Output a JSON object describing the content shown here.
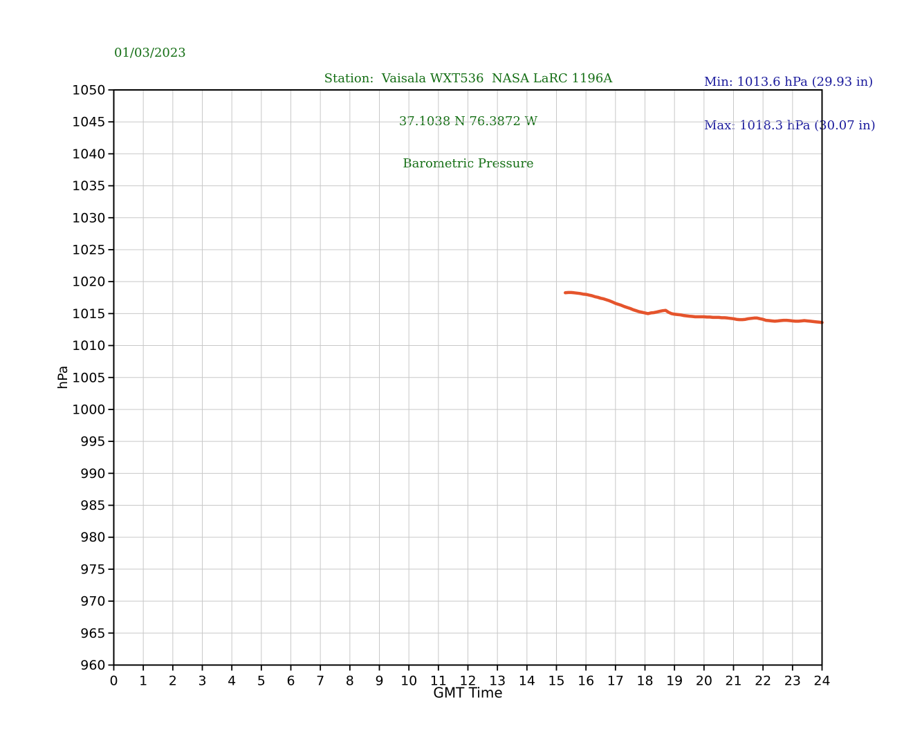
{
  "header": {
    "date": "01/03/2023",
    "station_line": "Station:  Vaisala WXT536  NASA LaRC 1196A",
    "location_line": "37.1038 N 76.3872 W",
    "plot_title": "Barometric Pressure",
    "min_line": "Min: 1013.6 hPa (29.93 in)",
    "max_line": "Max: 1018.3 hPa (30.07 in)"
  },
  "colors": {
    "title_green": "#146e14",
    "minmax_blue": "#1a1a9c",
    "line_orange": "#e5542c",
    "grid_gray": "#c8c8c8",
    "axis_black": "#000000"
  },
  "chart_data": {
    "type": "line",
    "title": "Barometric Pressure",
    "xlabel": "GMT Time",
    "ylabel": "hPa",
    "xlim": [
      0,
      24
    ],
    "ylim": [
      960,
      1050
    ],
    "grid": true,
    "legend": "none",
    "x_ticks": [
      0,
      1,
      2,
      3,
      4,
      5,
      6,
      7,
      8,
      9,
      10,
      11,
      12,
      13,
      14,
      15,
      16,
      17,
      18,
      19,
      20,
      21,
      22,
      23,
      24
    ],
    "y_ticks": [
      960,
      965,
      970,
      975,
      980,
      985,
      990,
      995,
      1000,
      1005,
      1010,
      1015,
      1020,
      1025,
      1030,
      1035,
      1040,
      1045,
      1050
    ],
    "min_hpa": 1013.6,
    "max_hpa": 1018.3,
    "min_inhg": 29.93,
    "max_inhg": 30.07,
    "series": [
      {
        "name": "Barometric Pressure",
        "color": "#e5542c",
        "x": [
          15.3,
          15.4,
          15.5,
          15.6,
          15.7,
          15.8,
          15.9,
          16.0,
          16.1,
          16.2,
          16.3,
          16.4,
          16.5,
          16.6,
          16.7,
          16.8,
          16.9,
          17.0,
          17.1,
          17.2,
          17.3,
          17.4,
          17.5,
          17.6,
          17.7,
          17.8,
          17.9,
          18.0,
          18.1,
          18.2,
          18.3,
          18.4,
          18.5,
          18.6,
          18.7,
          18.8,
          18.9,
          19.0,
          19.1,
          19.2,
          19.3,
          19.4,
          19.5,
          19.6,
          19.7,
          19.8,
          19.9,
          20.0,
          20.1,
          20.2,
          20.3,
          20.4,
          20.5,
          20.6,
          20.7,
          20.8,
          20.9,
          21.0,
          21.1,
          21.2,
          21.3,
          21.4,
          21.5,
          21.6,
          21.7,
          21.8,
          21.9,
          22.0,
          22.1,
          22.2,
          22.3,
          22.4,
          22.5,
          22.6,
          22.7,
          22.8,
          22.9,
          23.0,
          23.1,
          23.2,
          23.3,
          23.4,
          23.5,
          23.6,
          23.7,
          23.8,
          23.9,
          24.0
        ],
        "y": [
          1018.25,
          1018.3,
          1018.3,
          1018.25,
          1018.2,
          1018.15,
          1018.05,
          1018.0,
          1017.9,
          1017.8,
          1017.65,
          1017.55,
          1017.4,
          1017.3,
          1017.15,
          1017.0,
          1016.8,
          1016.6,
          1016.45,
          1016.3,
          1016.1,
          1015.95,
          1015.8,
          1015.6,
          1015.45,
          1015.3,
          1015.2,
          1015.1,
          1015.0,
          1015.1,
          1015.15,
          1015.25,
          1015.35,
          1015.45,
          1015.5,
          1015.2,
          1015.0,
          1014.9,
          1014.85,
          1014.8,
          1014.7,
          1014.65,
          1014.6,
          1014.55,
          1014.5,
          1014.5,
          1014.5,
          1014.5,
          1014.45,
          1014.45,
          1014.4,
          1014.4,
          1014.4,
          1014.35,
          1014.35,
          1014.3,
          1014.25,
          1014.2,
          1014.1,
          1014.05,
          1014.05,
          1014.1,
          1014.2,
          1014.25,
          1014.3,
          1014.3,
          1014.2,
          1014.1,
          1013.95,
          1013.9,
          1013.85,
          1013.8,
          1013.85,
          1013.9,
          1013.95,
          1013.95,
          1013.9,
          1013.85,
          1013.8,
          1013.8,
          1013.85,
          1013.9,
          1013.85,
          1013.8,
          1013.75,
          1013.7,
          1013.65,
          1013.6
        ]
      }
    ]
  }
}
